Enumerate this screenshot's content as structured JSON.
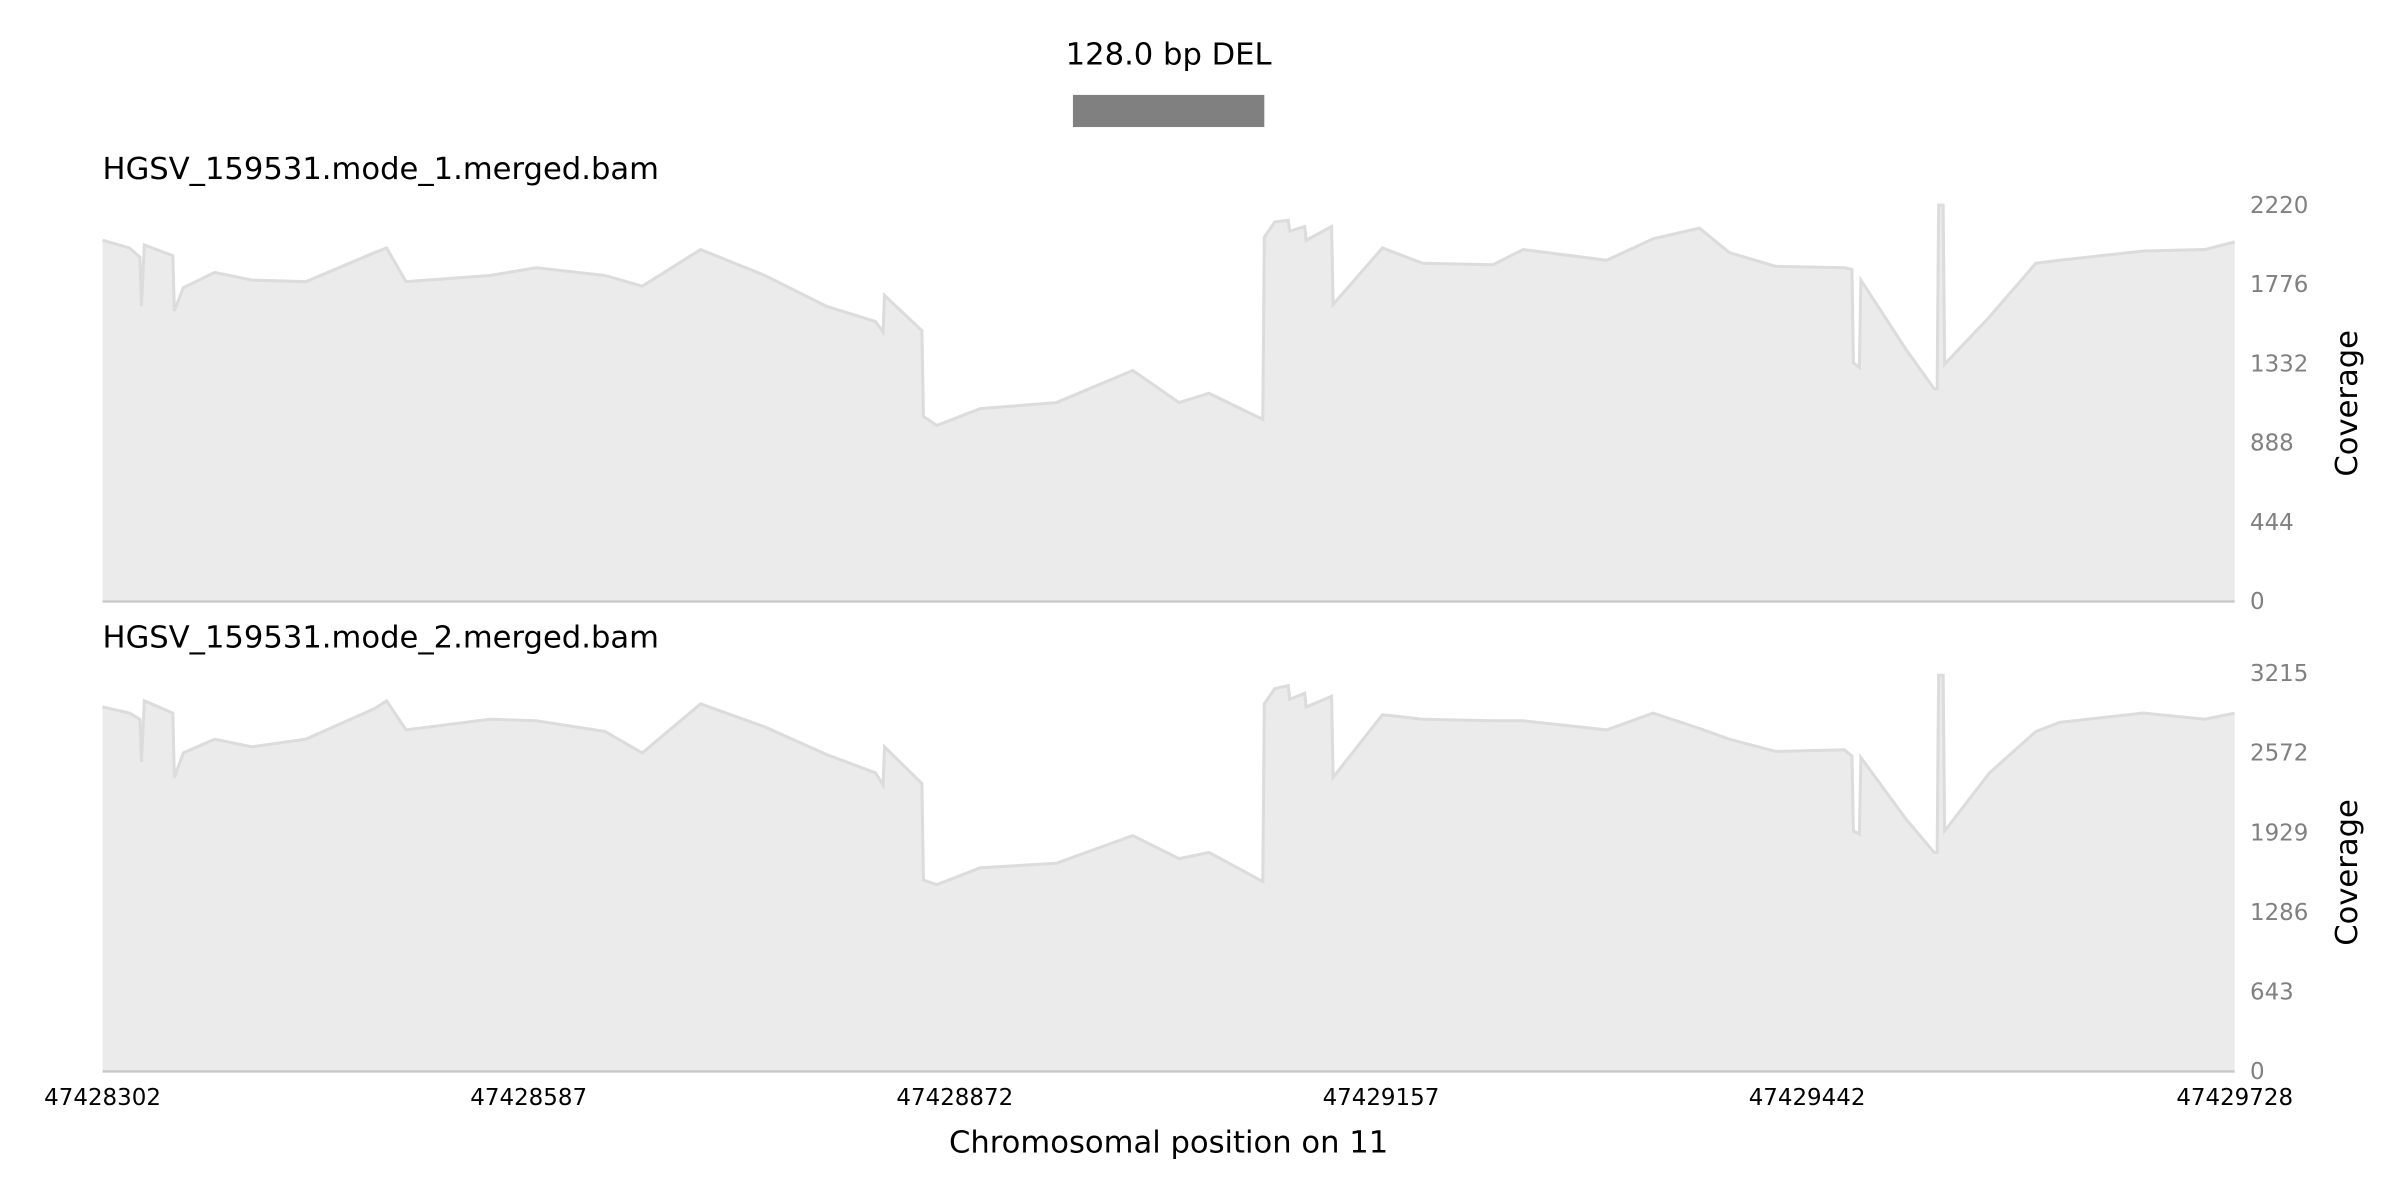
{
  "chart_data": [
    {
      "type": "interval",
      "title": "128.0 bp DEL",
      "start": 47428951,
      "end": 47429079,
      "color": "#808080",
      "xlim": [
        47428302,
        47429728
      ]
    },
    {
      "type": "area",
      "title": "HGSV_159531.mode_1.merged.bam",
      "ylabel": "Coverage",
      "fill": "#ebebeb",
      "color": "#dcdcdc",
      "xlim": [
        47428302,
        47429728
      ],
      "ylim": [
        0,
        2220
      ],
      "yticks": [
        0,
        444,
        888,
        1332,
        1776,
        2220
      ],
      "x": [
        47428302,
        47428320,
        47428327,
        47428328,
        47428330,
        47428349,
        47428350,
        47428356,
        47428377,
        47428402,
        47428438,
        47428484,
        47428492,
        47428505,
        47428561,
        47428592,
        47428638,
        47428663,
        47428702,
        47428745,
        47428786,
        47428819,
        47428824,
        47428825,
        47428850,
        47428851,
        47428860,
        47428889,
        47428940,
        47428991,
        47429022,
        47429042,
        47429078,
        47429079,
        47429086,
        47429095,
        47429096,
        47429106,
        47429107,
        47429124,
        47429125,
        47429158,
        47429185,
        47429232,
        47429252,
        47429308,
        47429339,
        47429370,
        47429390,
        47429421,
        47429467,
        47429472,
        47429473,
        47429477,
        47429478,
        47429508,
        47429527,
        47429529,
        47429530,
        47429533,
        47429534,
        47429564,
        47429595,
        47429611,
        47429667,
        47429708,
        47429728
      ],
      "values": [
        2023,
        1980,
        1929,
        1654,
        1997,
        1937,
        1628,
        1757,
        1843,
        1800,
        1791,
        1954,
        1980,
        1791,
        1826,
        1869,
        1826,
        1766,
        1971,
        1826,
        1654,
        1568,
        1508,
        1714,
        1517,
        1037,
        986,
        1080,
        1114,
        1294,
        1114,
        1166,
        1020,
        2040,
        2126,
        2134,
        2074,
        2100,
        2023,
        2100,
        1663,
        1980,
        1894,
        1886,
        1971,
        1911,
        2031,
        2091,
        1954,
        1877,
        1869,
        1860,
        1337,
        1311,
        1800,
        1414,
        1191,
        1191,
        2220,
        2220,
        1329,
        1594,
        1894,
        1911,
        1963,
        1971,
        2014
      ]
    },
    {
      "type": "area",
      "title": "HGSV_159531.mode_2.merged.bam",
      "ylabel": "Coverage",
      "xlabel": "Chromosomal position on 11",
      "fill": "#ebebeb",
      "color": "#dcdcdc",
      "xlim": [
        47428302,
        47429728
      ],
      "xticks": [
        47428302,
        47428587,
        47428872,
        47429157,
        47429442,
        47429728
      ],
      "ylim": [
        0,
        3215
      ],
      "yticks": [
        0,
        643,
        1286,
        1929,
        2572,
        3215
      ],
      "x": [
        47428302,
        47428320,
        47428327,
        47428328,
        47428330,
        47428349,
        47428350,
        47428356,
        47428377,
        47428402,
        47428438,
        47428484,
        47428492,
        47428505,
        47428561,
        47428592,
        47428638,
        47428663,
        47428702,
        47428745,
        47428786,
        47428819,
        47428824,
        47428825,
        47428850,
        47428851,
        47428860,
        47428889,
        47428940,
        47428991,
        47429022,
        47429042,
        47429078,
        47429079,
        47429086,
        47429095,
        47429096,
        47429106,
        47429107,
        47429124,
        47429125,
        47429158,
        47429185,
        47429232,
        47429252,
        47429308,
        47429339,
        47429370,
        47429390,
        47429421,
        47429467,
        47429472,
        47429473,
        47429477,
        47429478,
        47429508,
        47429527,
        47429529,
        47429530,
        47429533,
        47429534,
        47429564,
        47429595,
        47429611,
        47429667,
        47429708,
        47429728
      ],
      "values": [
        2944,
        2895,
        2845,
        2499,
        2994,
        2895,
        2375,
        2573,
        2684,
        2622,
        2684,
        2932,
        2994,
        2759,
        2845,
        2833,
        2746,
        2573,
        2969,
        2783,
        2561,
        2412,
        2313,
        2622,
        2326,
        1546,
        1509,
        1645,
        1682,
        1905,
        1719,
        1769,
        1534,
        2969,
        3093,
        3117,
        3006,
        3055,
        2944,
        3031,
        2375,
        2882,
        2845,
        2833,
        2833,
        2759,
        2895,
        2771,
        2684,
        2585,
        2598,
        2548,
        1942,
        1917,
        2536,
        2041,
        1769,
        1769,
        3200,
        3200,
        1942,
        2412,
        2746,
        2820,
        2895,
        2845,
        2895
      ]
    }
  ]
}
